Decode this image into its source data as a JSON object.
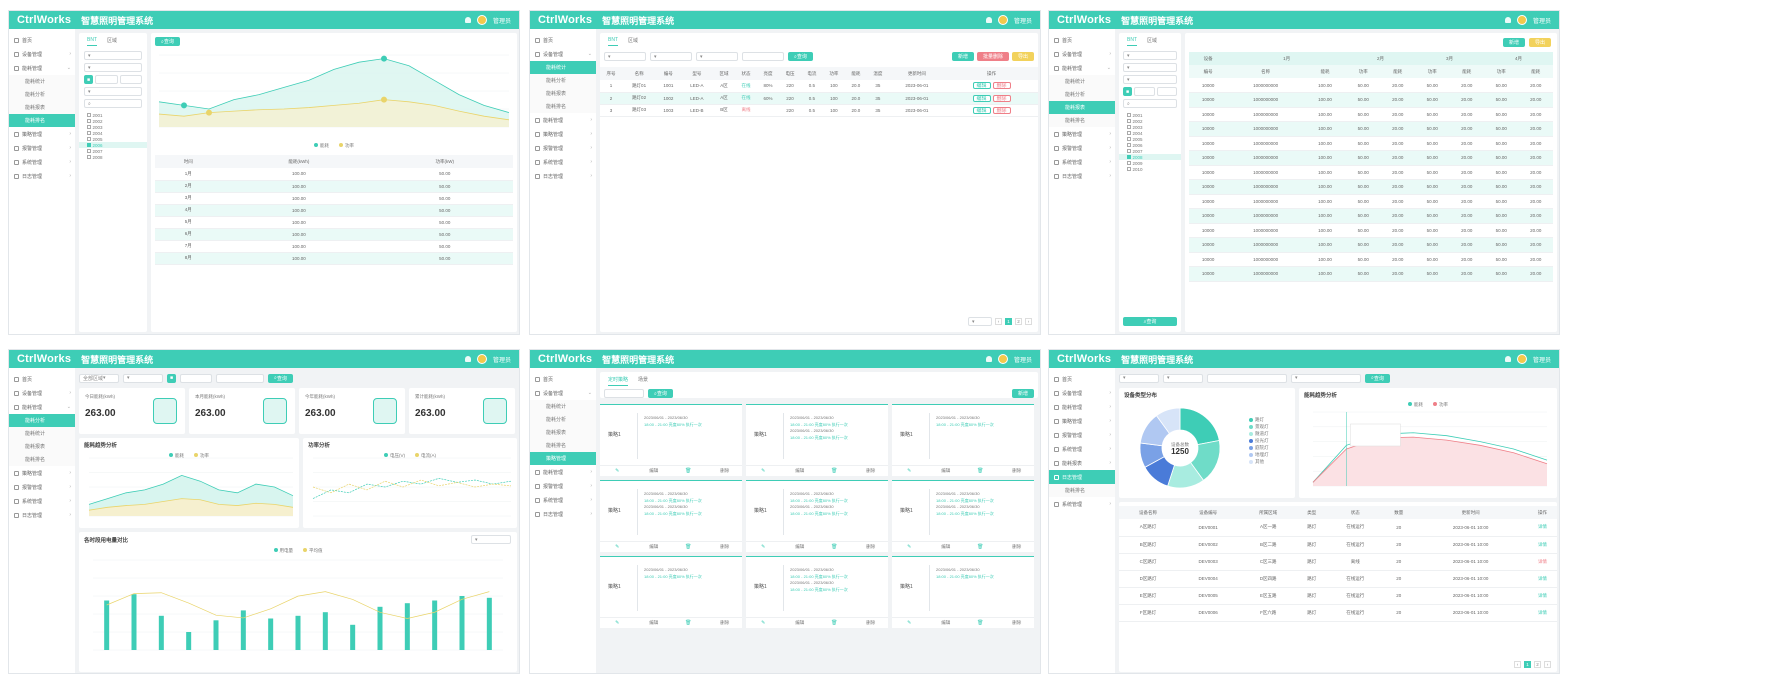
{
  "common": {
    "logo": "CtrlWorks",
    "system_title": "智慧照明管理系统",
    "user": "管理员"
  },
  "colors": {
    "accent": "#3ecdb6",
    "danger": "#ef7f88",
    "warn": "#f2d25c"
  },
  "p1": {
    "tabs": [
      "BNT",
      "区域"
    ],
    "search_btn": "查询",
    "tree": [
      "2001",
      "2002",
      "2003",
      "2004",
      "2005",
      "2006",
      "2007",
      "2008"
    ],
    "legend": [
      "能耗",
      "功率"
    ],
    "table_headers": [
      "时间",
      "能耗(kWh)",
      "功率(kW)"
    ],
    "rows": [
      [
        "1月",
        "100.00",
        "50.00"
      ],
      [
        "2月",
        "100.00",
        "50.00"
      ],
      [
        "3月",
        "100.00",
        "50.00"
      ],
      [
        "4月",
        "100.00",
        "50.00"
      ],
      [
        "5月",
        "100.00",
        "50.00"
      ],
      [
        "6月",
        "100.00",
        "50.00"
      ],
      [
        "7月",
        "100.00",
        "50.00"
      ],
      [
        "8月",
        "100.00",
        "50.00"
      ]
    ]
  },
  "p2": {
    "tabs": [
      "BNT",
      "区域"
    ],
    "search_btn": "查询",
    "btn_add": "新增",
    "btn_delete": "批量删除",
    "btn_export": "导出",
    "headers": [
      "序号",
      "名称",
      "编号",
      "型号",
      "区域",
      "状态",
      "亮度",
      "电压",
      "电流",
      "功率",
      "能耗",
      "温度",
      "更新时间",
      "操作"
    ],
    "rows": [
      [
        "1",
        "路灯01",
        "1001",
        "LED-A",
        "A区",
        "在线",
        "80%",
        "220",
        "0.5",
        "100",
        "20.0",
        "35",
        "2023-06-01",
        "编辑"
      ],
      [
        "2",
        "路灯02",
        "1002",
        "LED-A",
        "A区",
        "在线",
        "60%",
        "220",
        "0.5",
        "100",
        "20.0",
        "35",
        "2023-06-01",
        "编辑"
      ],
      [
        "3",
        "路灯03",
        "1003",
        "LED-B",
        "B区",
        "离线",
        "",
        "220",
        "0.5",
        "100",
        "20.0",
        "35",
        "2023-06-01",
        "编辑"
      ]
    ],
    "delete_label": "删除"
  },
  "p3": {
    "tabs": [
      "BNT",
      "区域"
    ],
    "btn_add": "新增",
    "btn_export": "导出",
    "group_headers": [
      "设备",
      "1月",
      "2月",
      "3月",
      "4月"
    ],
    "sub_headers": [
      "编号",
      "名称",
      "能耗",
      "功率",
      "能耗",
      "功率",
      "能耗",
      "功率",
      "能耗"
    ],
    "row": [
      "10000",
      "1000000000",
      "100.00",
      "50.00",
      "20.00",
      "50.00",
      "20.00",
      "50.00",
      "20.00"
    ],
    "row_count": 14,
    "tree": [
      "2001",
      "2002",
      "2003",
      "2004",
      "2005",
      "2006",
      "2007",
      "2008",
      "2009",
      "2010"
    ],
    "search_btn": "查询"
  },
  "p4": {
    "stats": [
      {
        "label": "今日能耗(kWh)",
        "value": "263.00"
      },
      {
        "label": "本月能耗(kWh)",
        "value": "263.00"
      },
      {
        "label": "今年能耗(kWh)",
        "value": "263.00"
      },
      {
        "label": "累计能耗(kWh)",
        "value": "263.00"
      }
    ],
    "chart1_title": "能耗趋势分析",
    "chart2_title": "功率分析",
    "chart3_title": "各时段用电量对比",
    "legend1": [
      "能耗",
      "功率"
    ],
    "legend2": [
      "电压(V)",
      "电流(A)"
    ],
    "legend3": [
      "用电量",
      "平均值"
    ],
    "search_btn": "查询",
    "select": "全部区域",
    "bars": [
      0.55,
      0.62,
      0.38,
      0.2,
      0.33,
      0.44,
      0.35,
      0.38,
      0.42,
      0.28,
      0.48,
      0.52,
      0.55,
      0.6,
      0.58
    ]
  },
  "p5": {
    "tabs": [
      "定时策略",
      "场景"
    ],
    "search_btn": "查询",
    "btn_add": "新增",
    "card_title": "策略1",
    "date_range": "2023/06/01 - 2023/06/30",
    "time_line": "18:00 - 21:00 亮度80% 执行一次",
    "edit": "编辑",
    "delete": "删除"
  },
  "p6": {
    "search_btn": "查询",
    "pie_title": "设备类型分布",
    "line_title": "能耗趋势分析",
    "pie_center_label": "设备总数",
    "pie_center_value": "1250",
    "pie_legend": [
      "路灯",
      "景观灯",
      "隧道灯",
      "投光灯",
      "庭院灯",
      "地埋灯",
      "其他"
    ],
    "pie_values": [
      0.22,
      0.18,
      0.15,
      0.12,
      0.1,
      0.13,
      0.1
    ],
    "line_legend": [
      "能耗",
      "功率"
    ],
    "headers": [
      "设备名称",
      "设备编号",
      "所属区域",
      "类型",
      "状态",
      "数量",
      "更新时间",
      "操作"
    ],
    "rows": [
      [
        "A区路灯",
        "DEV0001",
        "A区一路",
        "路灯",
        "在线运行",
        "20",
        "2023-06-01 10:00",
        "详情"
      ],
      [
        "B区路灯",
        "DEV0002",
        "B区二路",
        "路灯",
        "在线运行",
        "20",
        "2023-06-01 10:00",
        "详情"
      ],
      [
        "C区路灯",
        "DEV0003",
        "C区三路",
        "路灯",
        "离线",
        "20",
        "2023-06-01 10:00",
        "详情"
      ],
      [
        "D区路灯",
        "DEV0004",
        "D区四路",
        "路灯",
        "在线运行",
        "20",
        "2023-06-01 10:00",
        "详情"
      ],
      [
        "E区路灯",
        "DEV0005",
        "E区五路",
        "路灯",
        "在线运行",
        "20",
        "2023-06-01 10:00",
        "详情"
      ],
      [
        "F区路灯",
        "DEV0006",
        "F区六路",
        "路灯",
        "在线运行",
        "20",
        "2023-06-01 10:00",
        "详情"
      ]
    ]
  },
  "sidebar": [
    {
      "label": "首页",
      "sub": false
    },
    {
      "label": "设备管理",
      "sub": false
    },
    {
      "label": "能耗管理",
      "sub": false
    },
    {
      "label": "能耗统计",
      "sub": true
    },
    {
      "label": "能耗分析",
      "sub": true
    },
    {
      "label": "能耗报表",
      "sub": true
    },
    {
      "label": "能耗排名",
      "sub": true
    },
    {
      "label": "策略管理",
      "sub": false
    },
    {
      "label": "报警管理",
      "sub": false
    },
    {
      "label": "系统管理",
      "sub": false
    },
    {
      "label": "日志管理",
      "sub": false
    }
  ]
}
